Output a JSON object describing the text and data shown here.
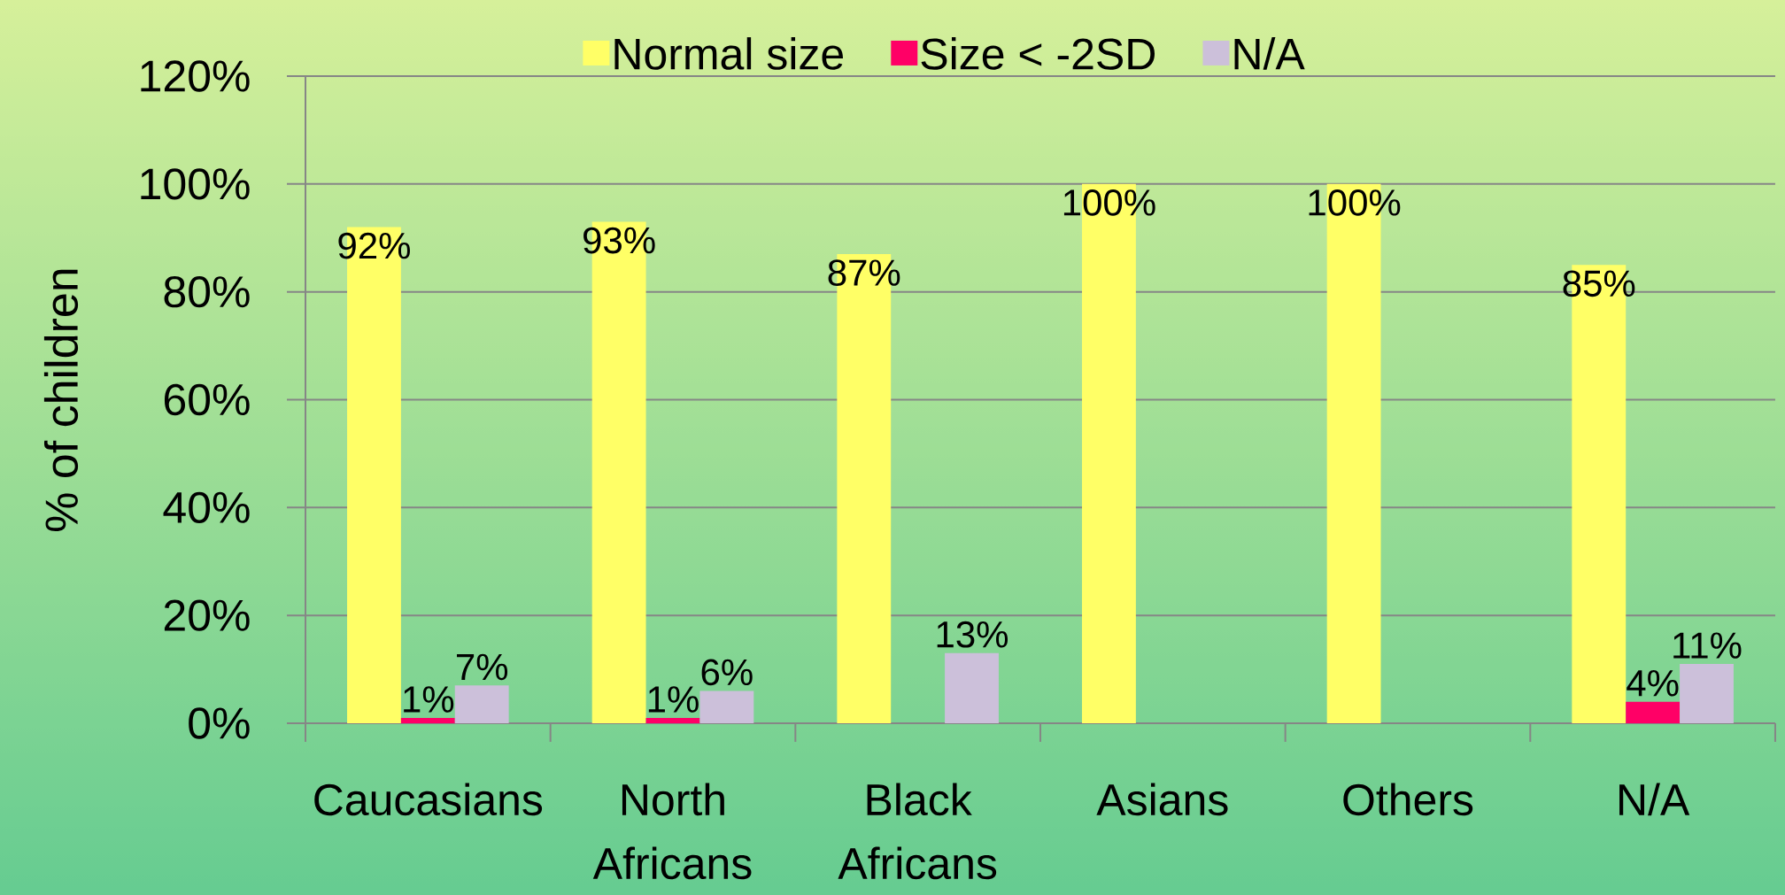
{
  "chart_data": {
    "type": "bar",
    "ylabel": "% of children",
    "categories": [
      "Caucasians",
      "North Africans",
      "Black Africans",
      "Asians",
      "Others",
      "N/A"
    ],
    "series": [
      {
        "name": "Normal size",
        "color": "#ffff66",
        "values": [
          92,
          93,
          87,
          100,
          100,
          85
        ],
        "value_labels": [
          "92%",
          "93%",
          "87%",
          "100%",
          "100%",
          "85%"
        ]
      },
      {
        "name": "Size < -2SD",
        "color": "#ff0066",
        "values": [
          1,
          1,
          null,
          null,
          null,
          4
        ],
        "value_labels": [
          "1%",
          "1%",
          null,
          null,
          null,
          "4%"
        ]
      },
      {
        "name": "N/A",
        "color": "#ccc0da",
        "values": [
          7,
          6,
          13,
          null,
          null,
          11
        ],
        "value_labels": [
          "7%",
          "6%",
          "13%",
          null,
          null,
          "11%"
        ]
      }
    ],
    "ylim": [
      0,
      120
    ],
    "yticks": [
      {
        "value": 0,
        "label": "0%"
      },
      {
        "value": 20,
        "label": "20%"
      },
      {
        "value": 40,
        "label": "40%"
      },
      {
        "value": 60,
        "label": "60%"
      },
      {
        "value": 80,
        "label": "80%"
      },
      {
        "value": 100,
        "label": "100%"
      },
      {
        "value": 120,
        "label": "120%"
      }
    ],
    "grid": "y",
    "legend": "top"
  }
}
